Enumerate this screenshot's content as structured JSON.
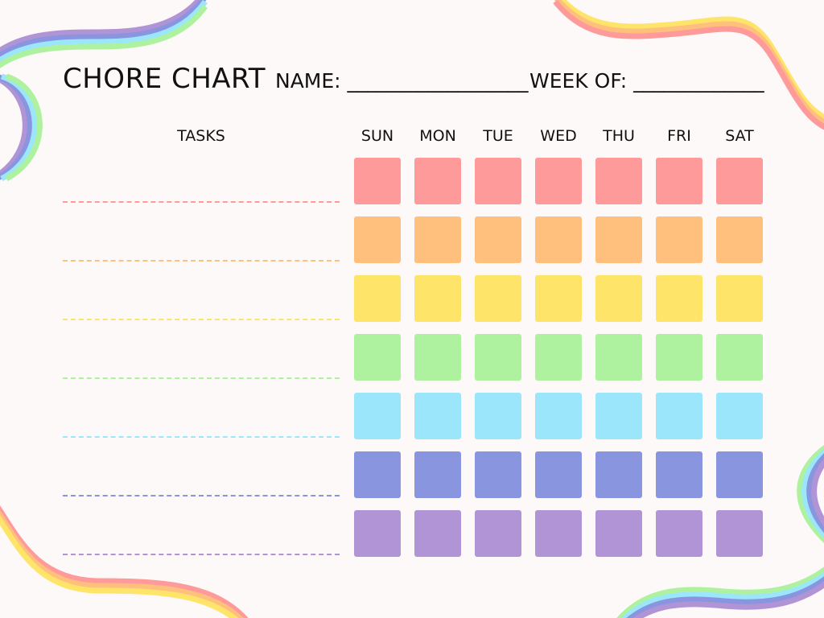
{
  "title": "CHORE CHART",
  "name_field": {
    "label": "NAME:",
    "blank": "__________________"
  },
  "week_field": {
    "label": "WEEK OF:",
    "blank": "_____________"
  },
  "tasks_header": "TASKS",
  "days": [
    "SUN",
    "MON",
    "TUE",
    "WED",
    "THU",
    "FRI",
    "SAT"
  ],
  "row_colors": [
    "#ff9a9a",
    "#ffc07e",
    "#ffe46a",
    "#aef2a0",
    "#9ce6fb",
    "#8a95e0",
    "#b094d6"
  ],
  "background": "#fdf9f8",
  "tasks": [
    "",
    "",
    "",
    "",
    "",
    "",
    ""
  ]
}
